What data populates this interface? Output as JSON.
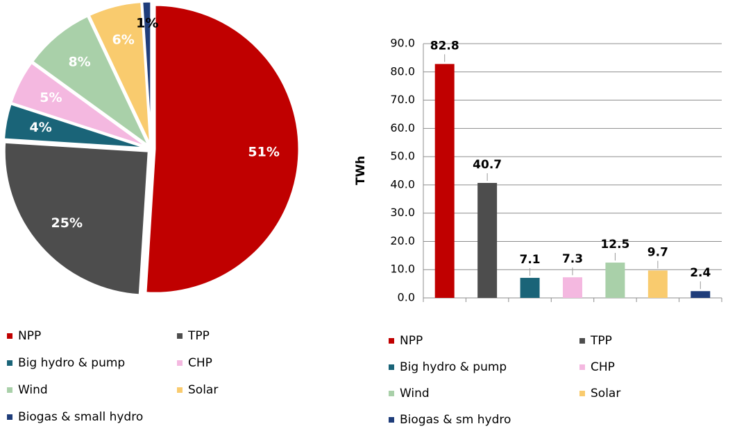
{
  "chart_data": [
    {
      "type": "pie",
      "categories": [
        "NPP",
        "TPP",
        "Big hydro & pump",
        "CHP",
        "Wind",
        "Solar",
        "Biogas & small hydro"
      ],
      "values": [
        51,
        25,
        4,
        5,
        8,
        6,
        1
      ],
      "value_labels": [
        "51%",
        "25%",
        "4%",
        "5%",
        "8%",
        "6%",
        "1%"
      ],
      "colors": [
        "#c00000",
        "#4d4d4d",
        "#1a6478",
        "#f4b8e0",
        "#a9d0a9",
        "#f9cb6e",
        "#1f3d7a"
      ]
    },
    {
      "type": "bar",
      "ylabel": "TWh",
      "categories": [
        "NPP",
        "TPP",
        "Big hydro & pump",
        "CHP",
        "Wind",
        "Solar",
        "Biogas & sm hydro"
      ],
      "values": [
        82.8,
        40.7,
        7.1,
        7.3,
        12.5,
        9.7,
        2.4
      ],
      "colors": [
        "#c00000",
        "#4d4d4d",
        "#1a6478",
        "#f4b8e0",
        "#a9d0a9",
        "#f9cb6e",
        "#1f3d7a"
      ],
      "ylim": [
        0,
        90
      ],
      "yticks": [
        {
          "value": 0,
          "label": "0.0"
        },
        {
          "value": 10,
          "label": "10.0"
        },
        {
          "value": 20,
          "label": "20.0"
        },
        {
          "value": 30,
          "label": "30.0"
        },
        {
          "value": 40,
          "label": "40.0"
        },
        {
          "value": 50,
          "label": "50.0"
        },
        {
          "value": 60,
          "label": "60.0"
        },
        {
          "value": 70,
          "label": "70.0"
        },
        {
          "value": 80,
          "label": "80.0"
        },
        {
          "value": 90,
          "label": "90.0"
        }
      ],
      "grid": true
    }
  ]
}
